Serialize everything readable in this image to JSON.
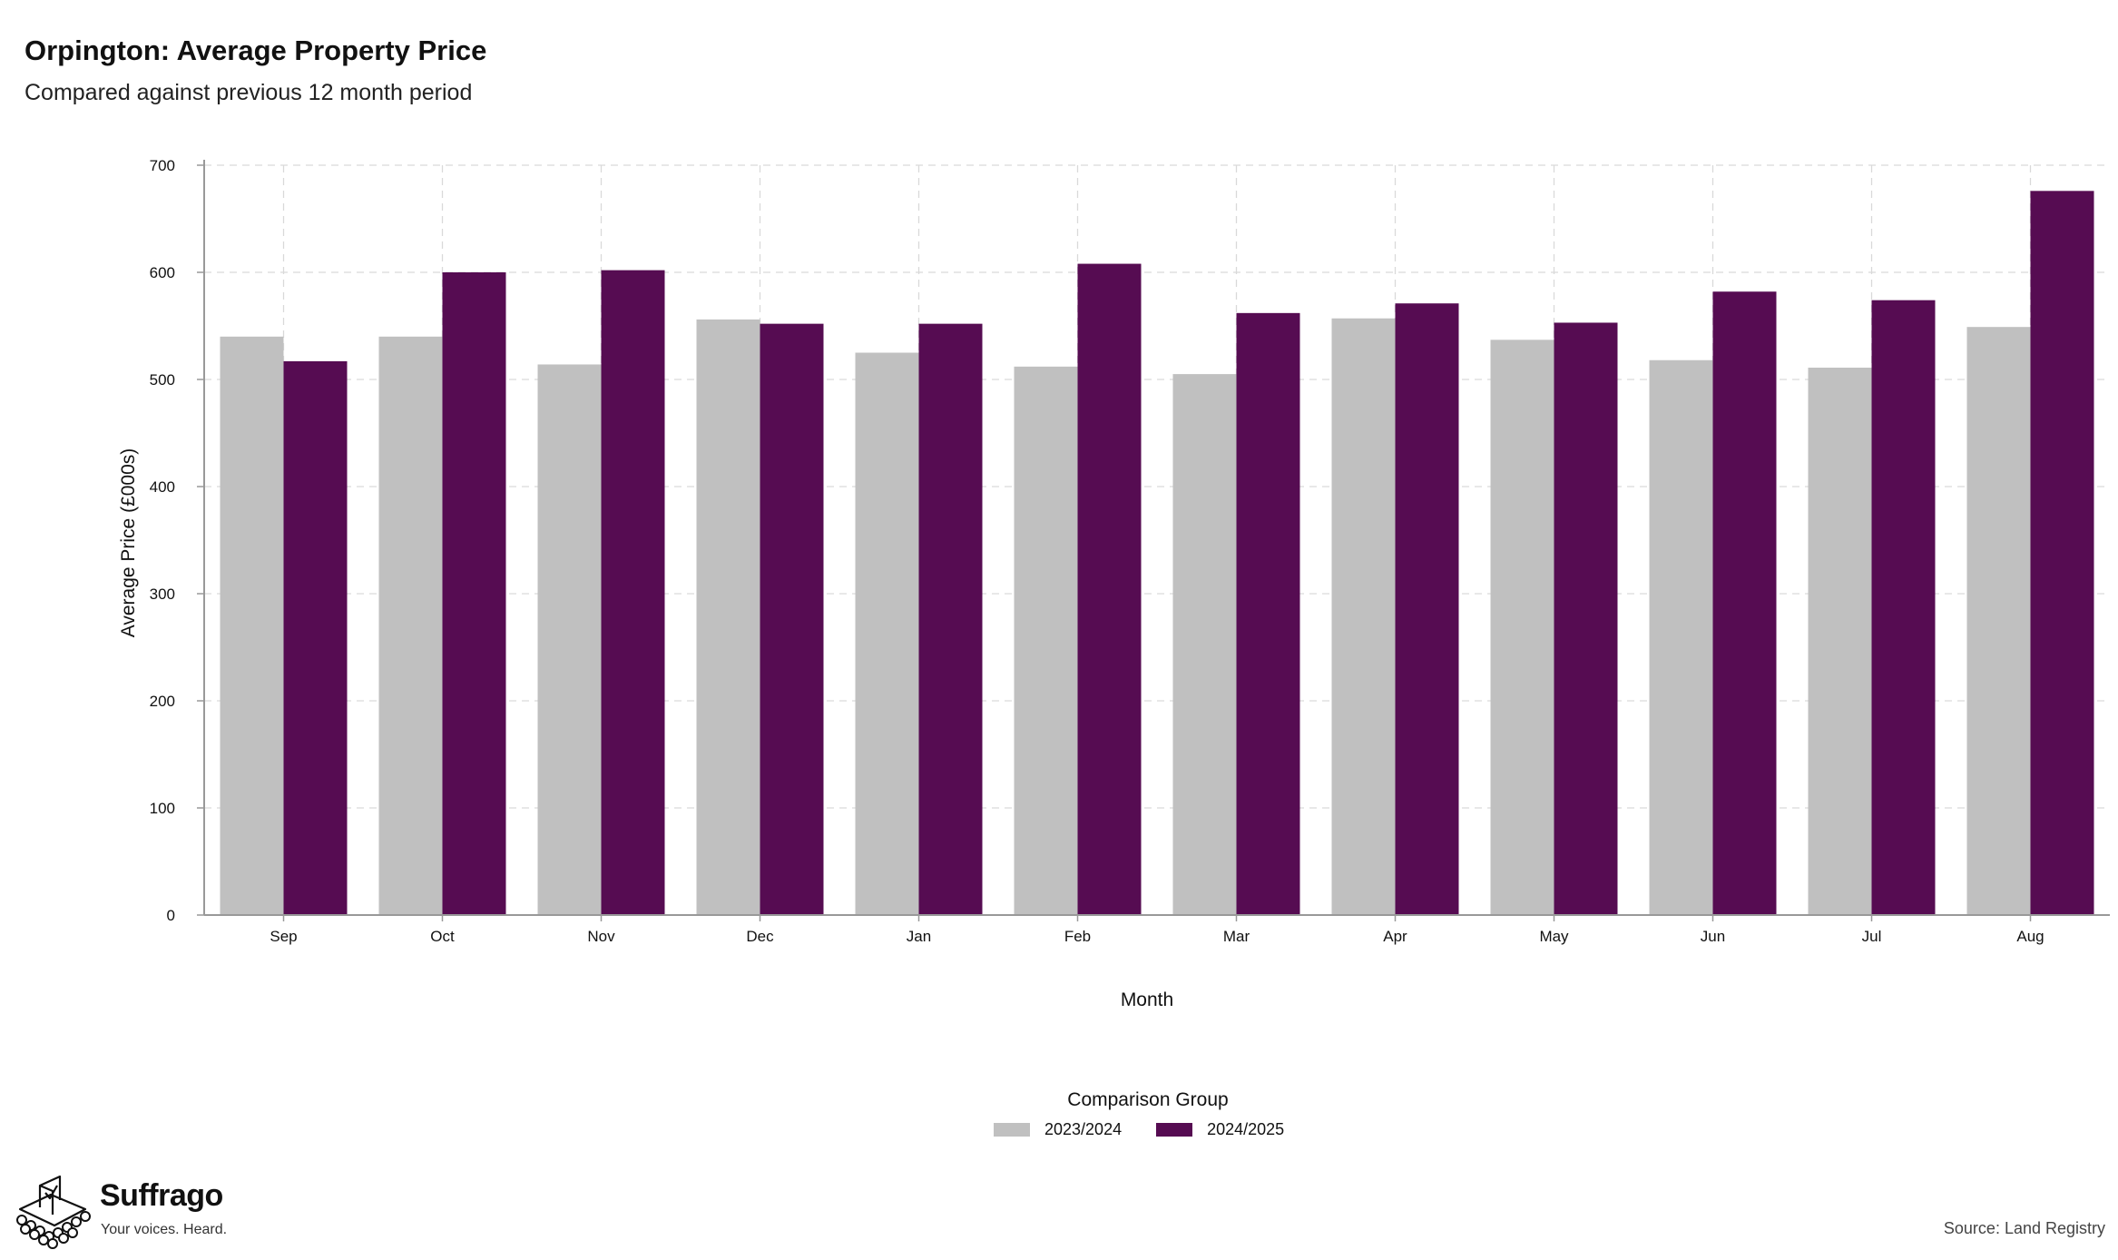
{
  "title": "Orpington: Average Property Price",
  "subtitle": "Compared against previous 12 month period",
  "source": "Source: Land Registry",
  "brand": {
    "name": "Suffrago",
    "tagline": "Your voices. Heard."
  },
  "colors": {
    "series_2023": "#c0c0c0",
    "series_2024": "#560c52",
    "grid": "#d9d9d9",
    "axis": "#999999"
  },
  "legend": {
    "title": "Comparison Group",
    "items": [
      "2023/2024",
      "2024/2025"
    ]
  },
  "chart_data": {
    "type": "bar",
    "title": "Orpington: Average Property Price",
    "subtitle": "Compared against previous 12 month period",
    "xlabel": "Month",
    "ylabel": "Average Price (£000s)",
    "ylim": [
      0,
      700
    ],
    "yticks": [
      0,
      100,
      200,
      300,
      400,
      500,
      600,
      700
    ],
    "grid": true,
    "legend_position": "bottom",
    "categories": [
      "Sep",
      "Oct",
      "Nov",
      "Dec",
      "Jan",
      "Feb",
      "Mar",
      "Apr",
      "May",
      "Jun",
      "Jul",
      "Aug"
    ],
    "series": [
      {
        "name": "2023/2024",
        "values": [
          540,
          540,
          514,
          556,
          525,
          512,
          505,
          557,
          537,
          518,
          511,
          549
        ]
      },
      {
        "name": "2024/2025",
        "values": [
          517,
          600,
          602,
          552,
          552,
          608,
          562,
          571,
          553,
          582,
          574,
          676
        ]
      }
    ]
  }
}
